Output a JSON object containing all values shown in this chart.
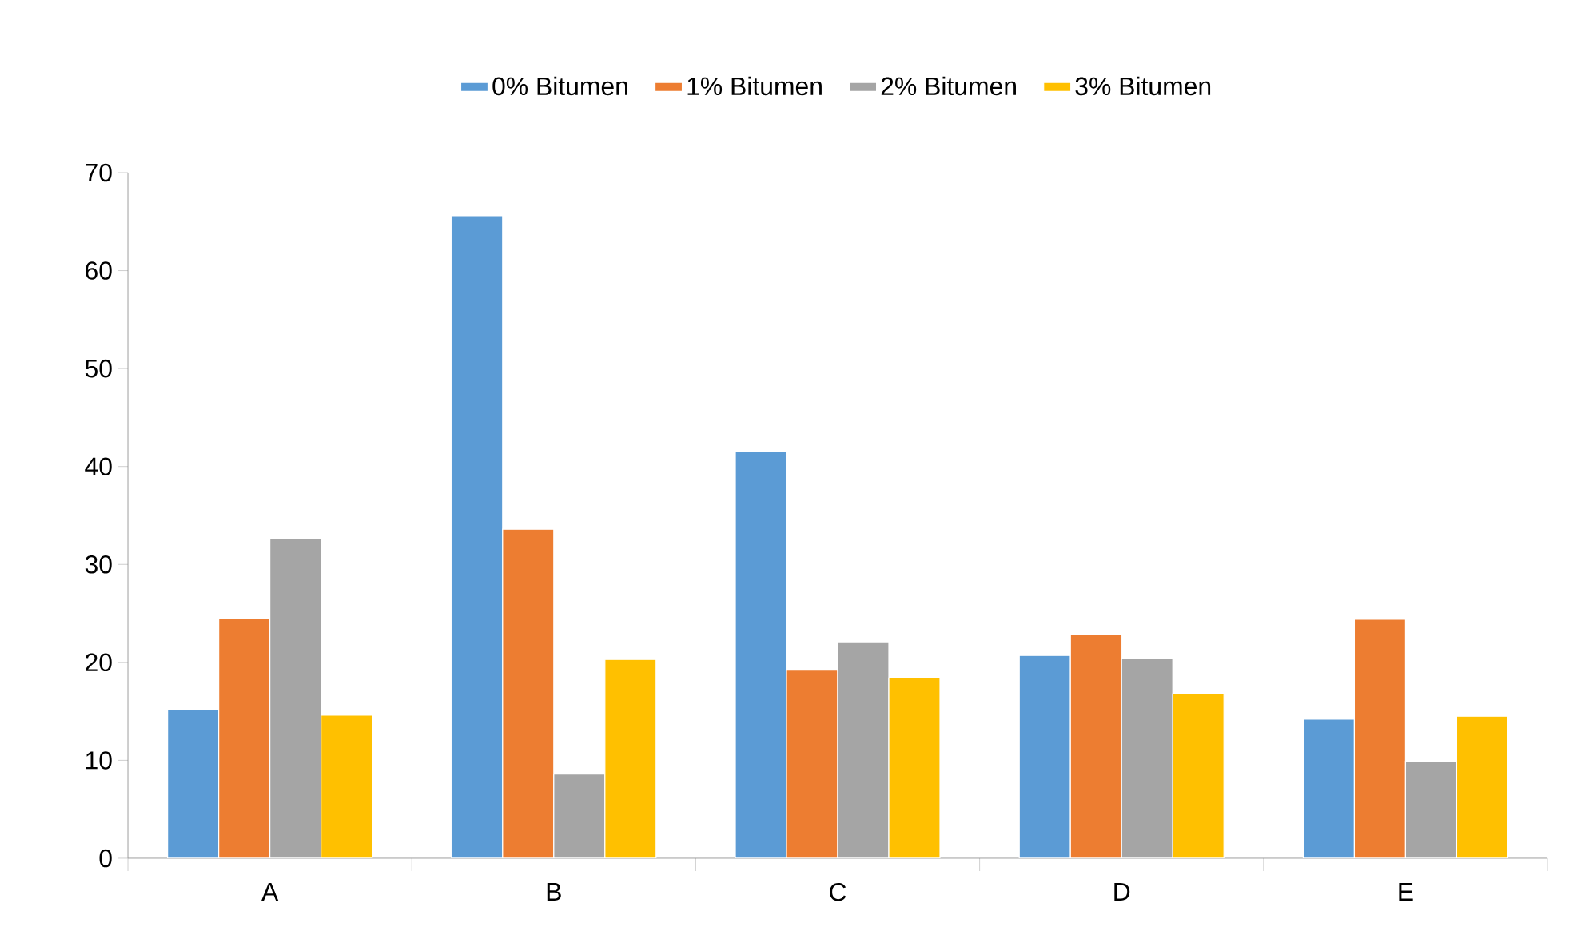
{
  "chart_data": {
    "type": "bar",
    "categories": [
      "A",
      "B",
      "C",
      "D",
      "E"
    ],
    "series": [
      {
        "name": "0% Bitumen",
        "color": "#5b9bd5",
        "values": [
          15.2,
          65.6,
          41.5,
          20.7,
          14.2
        ]
      },
      {
        "name": "1% Bitumen",
        "color": "#ed7d31",
        "values": [
          24.5,
          33.6,
          19.2,
          22.8,
          24.4
        ]
      },
      {
        "name": "2% Bitumen",
        "color": "#a5a5a5",
        "values": [
          32.6,
          8.6,
          22.1,
          20.4,
          9.9
        ]
      },
      {
        "name": "3% Bitumen",
        "color": "#ffc000",
        "values": [
          14.6,
          20.3,
          18.4,
          16.8,
          14.5
        ]
      }
    ],
    "ylim": [
      0,
      70
    ],
    "yticks": [
      0,
      10,
      20,
      30,
      40,
      50,
      60,
      70
    ],
    "legend": "top"
  }
}
